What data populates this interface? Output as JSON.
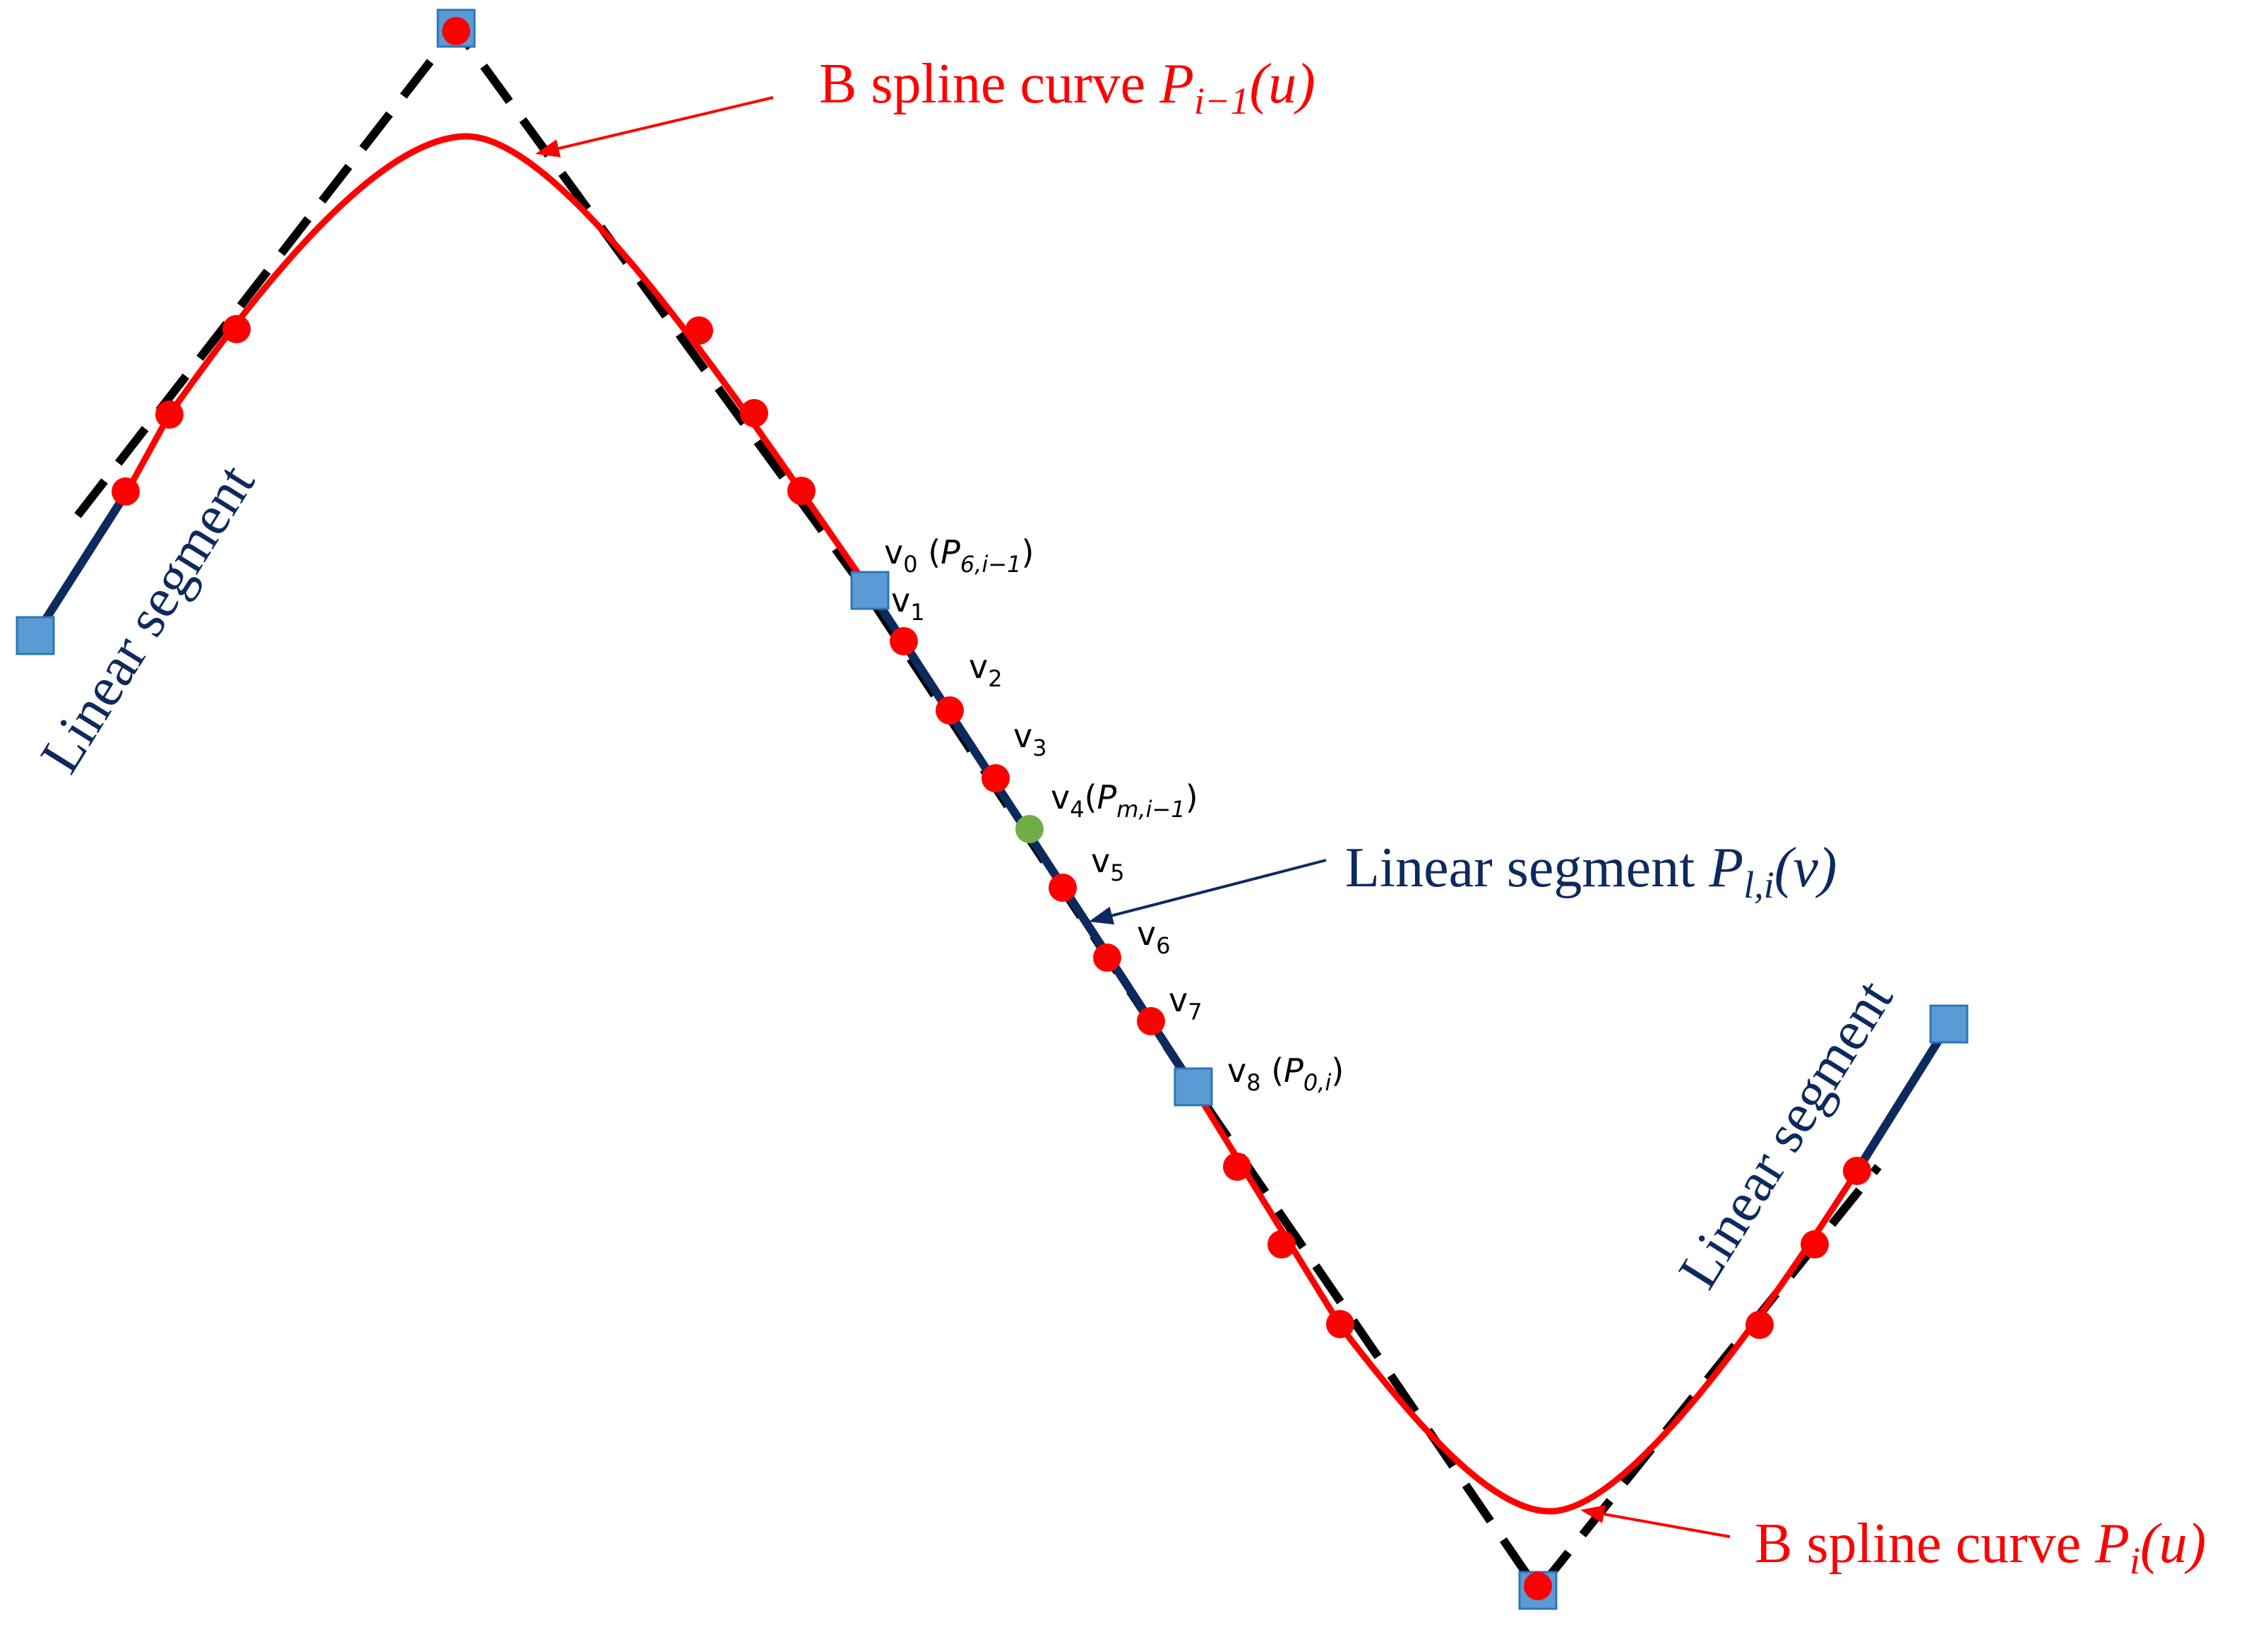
{
  "colors": {
    "spline": "#ff0000",
    "linear": "#0d2a5e",
    "polygon": "#000000",
    "control_point_fill": "#5b9bd5",
    "control_point_stroke": "#2e75b6",
    "sample_point": "#ff0000",
    "midpoint": "#70ad47",
    "background": "#ffffff"
  },
  "icons": {
    "control_point": "square",
    "sample_point": "circle",
    "midpoint": "circle"
  },
  "labels": {
    "spline_top": {
      "prefix": "B spline curve ",
      "sym": "P",
      "sub": "i−1",
      "arg": "(u)"
    },
    "spline_bottom": {
      "prefix": "B spline curve ",
      "sym": "P",
      "sub": "i",
      "arg": "(u)"
    },
    "linear_middle": {
      "prefix": "Linear segment ",
      "sym": "P",
      "sub": "l,i",
      "arg": "(v)"
    },
    "linear_left": "Linear segment",
    "linear_right": "Linear segment"
  },
  "vertices": [
    {
      "name": "v",
      "sub": "0",
      "extra_sym": "P",
      "extra_sub": "6,i−1"
    },
    {
      "name": "v",
      "sub": "1"
    },
    {
      "name": "v",
      "sub": "2"
    },
    {
      "name": "v",
      "sub": "3"
    },
    {
      "name": "v",
      "sub": "4",
      "extra_sym": "P",
      "extra_sub": "m,i−1"
    },
    {
      "name": "v",
      "sub": "5"
    },
    {
      "name": "v",
      "sub": "6"
    },
    {
      "name": "v",
      "sub": "7"
    },
    {
      "name": "v",
      "sub": "8",
      "extra_sym": "P",
      "extra_sub": "0,i"
    }
  ]
}
